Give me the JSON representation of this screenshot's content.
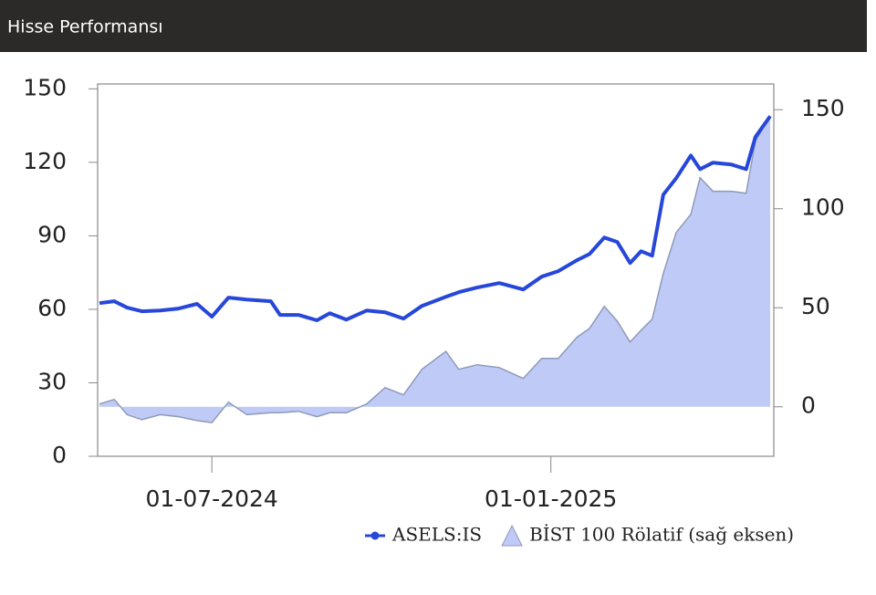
{
  "header": {
    "title": "Hisse Performansı"
  },
  "chart_data": {
    "type": "line",
    "x": [
      "2024-05-01",
      "2024-05-09",
      "2024-05-16",
      "2024-05-24",
      "2024-06-03",
      "2024-06-13",
      "2024-06-23",
      "2024-07-01",
      "2024-07-10",
      "2024-07-20",
      "2024-08-02",
      "2024-08-07",
      "2024-08-17",
      "2024-08-27",
      "2024-09-03",
      "2024-09-12",
      "2024-09-23",
      "2024-10-03",
      "2024-10-13",
      "2024-10-23",
      "2024-11-05",
      "2024-11-12",
      "2024-11-22",
      "2024-12-04",
      "2024-12-17",
      "2024-12-27",
      "2025-01-05",
      "2025-01-15",
      "2025-01-22",
      "2025-01-30",
      "2025-02-06",
      "2025-02-13",
      "2025-02-19",
      "2025-02-25",
      "2025-03-03",
      "2025-03-10",
      "2025-03-18",
      "2025-03-23",
      "2025-03-30",
      "2025-04-09",
      "2025-04-17",
      "2025-04-22",
      "2025-04-30"
    ],
    "series": [
      {
        "name": "ASELS:IS",
        "color": "#2747d9",
        "axis": "y",
        "values": [
          62.5,
          63.3,
          60.7,
          59.2,
          59.5,
          60.3,
          62.2,
          57,
          64.8,
          64,
          63.3,
          57.7,
          57.7,
          55.5,
          58.4,
          55.8,
          59.5,
          58.8,
          56.2,
          61.4,
          65.1,
          67,
          68.9,
          70.7,
          68.1,
          73.3,
          75.6,
          80,
          82.6,
          89.3,
          87.5,
          78.9,
          83.7,
          81.9,
          106.8,
          113.5,
          122.8,
          117.2,
          119.9,
          119.1,
          117.2,
          130.3,
          138.8
        ]
      },
      {
        "name": "BİST 100 Rölatif (sağ eksen)",
        "color": "#bfcaf6",
        "line_color": "#8e9ab8",
        "axis": "y2",
        "style": "area",
        "values": [
          1.4,
          3.7,
          -4,
          -6.5,
          -4,
          -5,
          -7,
          -8,
          2.3,
          -4,
          -3,
          -3,
          -2.3,
          -5,
          -3,
          -3,
          1.4,
          9.7,
          6,
          18.9,
          28,
          18.9,
          21.2,
          19.8,
          14.3,
          24.4,
          24.4,
          35,
          39.6,
          50.7,
          43.3,
          32.7,
          38.7,
          44.2,
          67.3,
          88,
          97.2,
          115.7,
          108.8,
          108.8,
          107.8,
          134.1,
          147
        ]
      }
    ],
    "xlim": [
      "2024-04-30",
      "2025-05-02"
    ],
    "xticks": [
      {
        "value": "2024-07-01",
        "label": "01-07-2024"
      },
      {
        "value": "2025-01-01",
        "label": "01-01-2025"
      }
    ],
    "ylim": [
      0,
      152
    ],
    "yticks": [
      0,
      30,
      60,
      90,
      120,
      150
    ],
    "y2lim": [
      -25,
      163
    ],
    "y2ticks": [
      0,
      50,
      100,
      150
    ],
    "legend": "bottom-right"
  }
}
